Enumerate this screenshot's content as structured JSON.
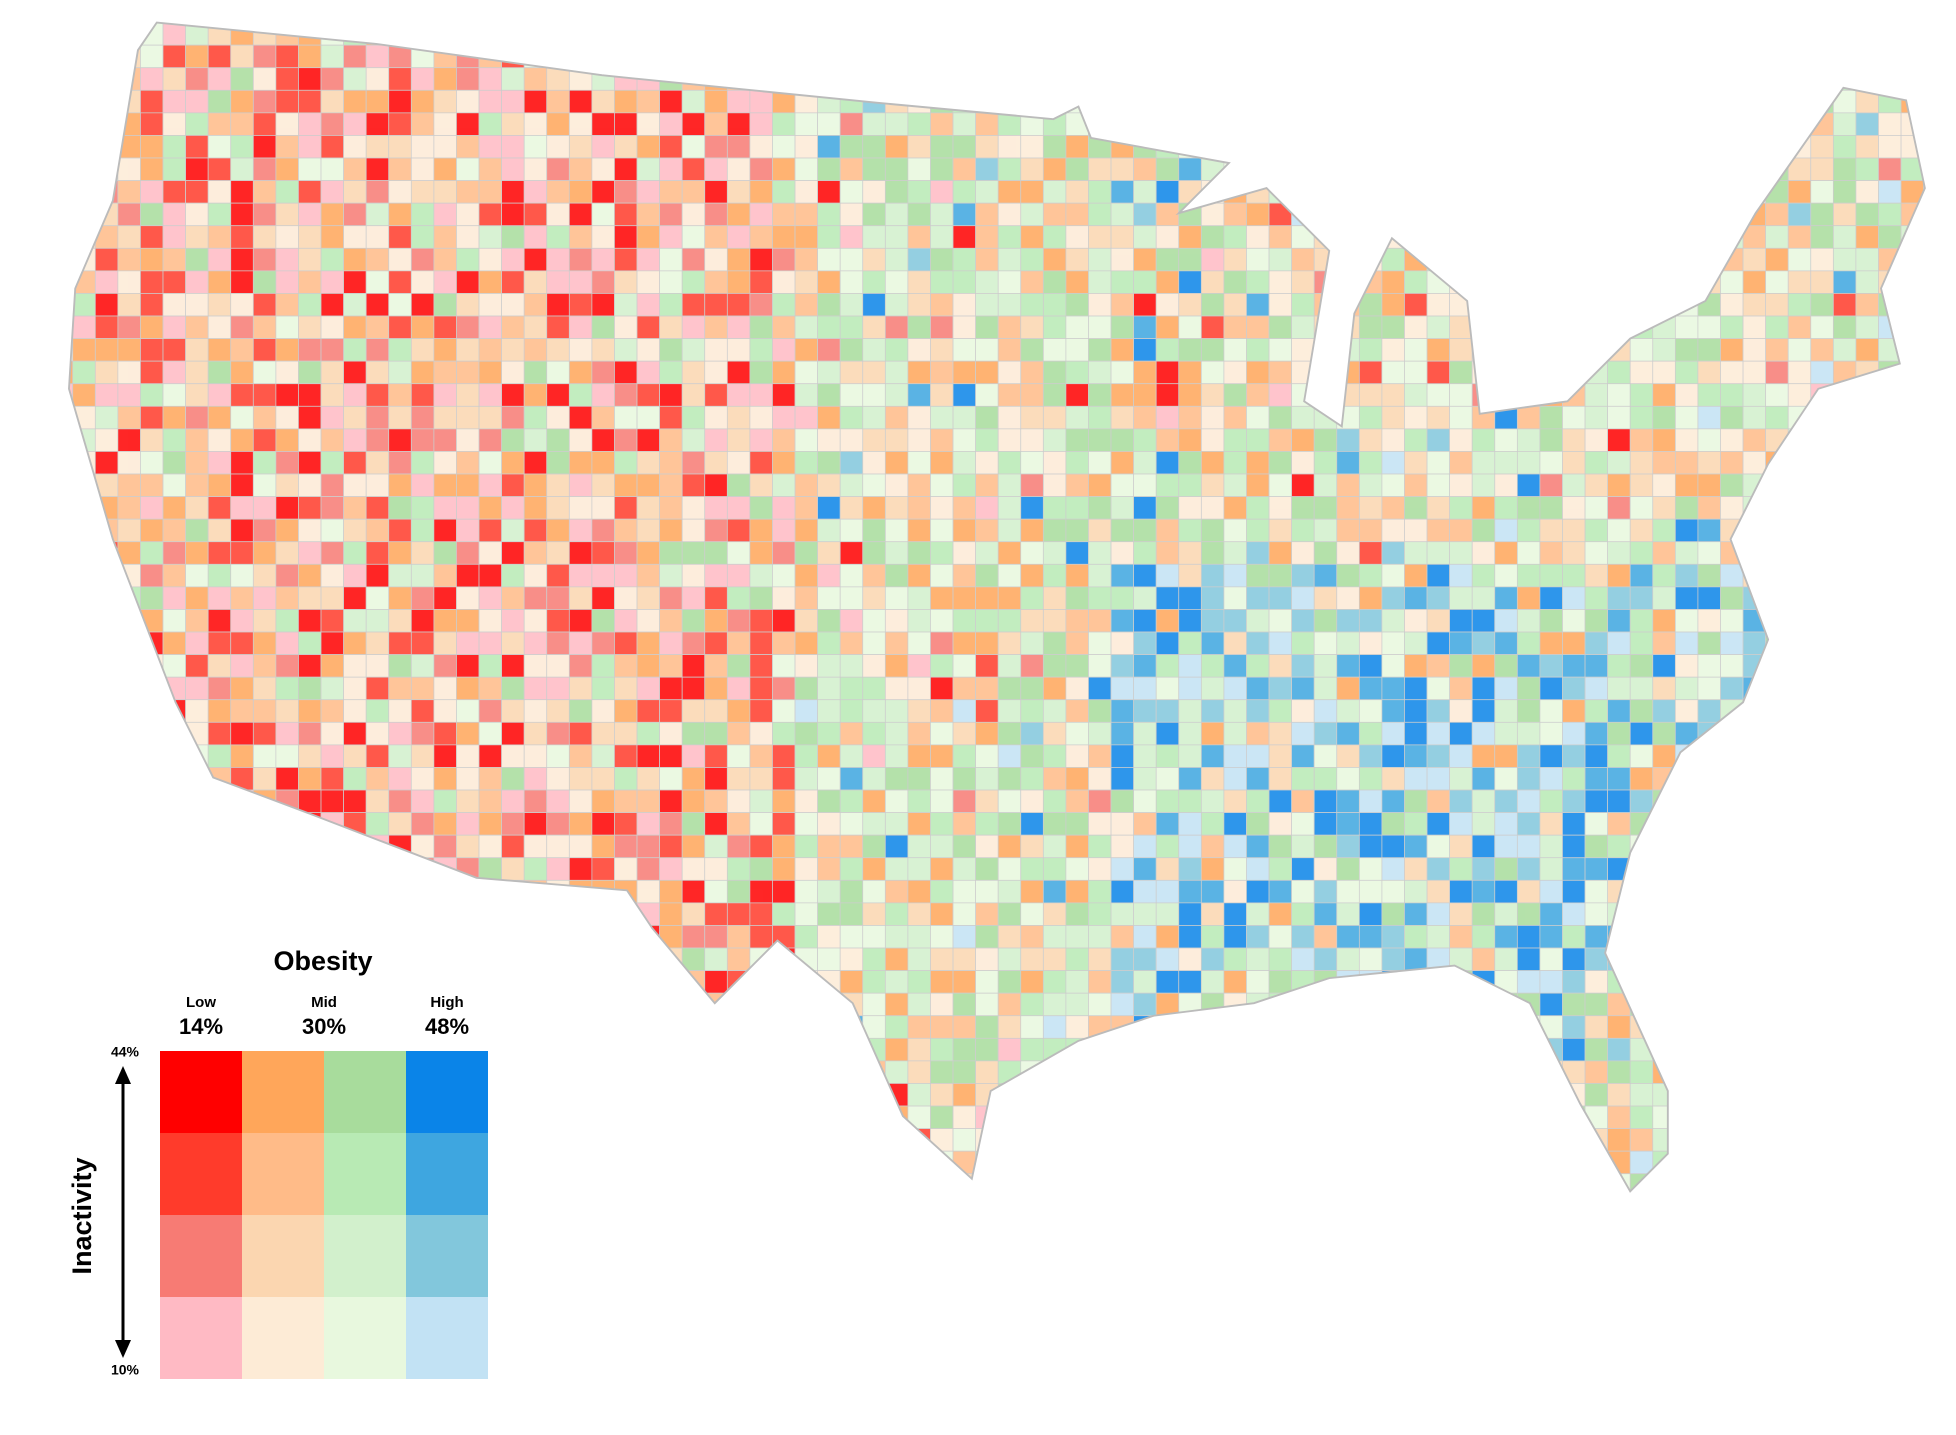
{
  "legend": {
    "title": "Obesity",
    "columns": [
      {
        "label": "Low",
        "value": "14%"
      },
      {
        "label": "Mid",
        "value": "30%"
      },
      {
        "label": "High",
        "value": "48%"
      }
    ],
    "axis": {
      "title": "Inactivity",
      "top": "44%",
      "bottom": "10%"
    },
    "colors": [
      [
        "#ff0000",
        "#ffa65a",
        "#a8dc9c",
        "#0a84e8"
      ],
      [
        "#ff3b2b",
        "#ffbb88",
        "#b8eab4",
        "#3ea6e0"
      ],
      [
        "#f77b74",
        "#fbd6b0",
        "#d2f0cc",
        "#82c7dc"
      ],
      [
        "#ffbac4",
        "#fdebd6",
        "#e8f8de",
        "#c2e2f4"
      ]
    ]
  }
}
